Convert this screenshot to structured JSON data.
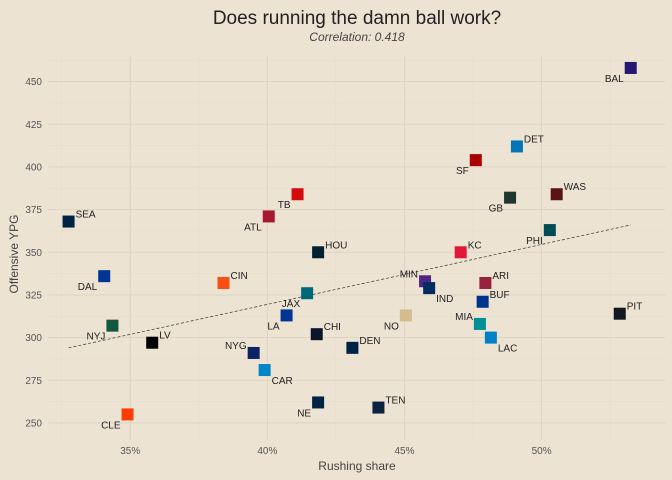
{
  "chart_data": {
    "type": "scatter",
    "title": "Does running the damn ball work?",
    "subtitle": "Correlation: 0.418",
    "xlabel": "Rushing share",
    "ylabel": "Offensive YPG",
    "xlim": [
      0.32,
      0.545
    ],
    "ylim": [
      240,
      465
    ],
    "x_ticks": [
      0.35,
      0.4,
      0.45,
      0.5
    ],
    "x_tick_labels": [
      "35%",
      "40%",
      "45%",
      "50%"
    ],
    "y_ticks": [
      250,
      275,
      300,
      325,
      350,
      375,
      400,
      425,
      450
    ],
    "y_tick_labels": [
      "250",
      "275",
      "300",
      "325",
      "350",
      "375",
      "400",
      "425",
      "450"
    ],
    "grid": true,
    "trendline": {
      "style": "dashed",
      "x": [
        0.3275,
        0.5325
      ],
      "y": [
        294,
        366
      ]
    },
    "points": [
      {
        "team": "BAL",
        "x": 0.5325,
        "y": 458,
        "color": "#241773",
        "label_pos": "bl"
      },
      {
        "team": "DET",
        "x": 0.491,
        "y": 412,
        "color": "#0076B6",
        "label_pos": "tr"
      },
      {
        "team": "SF",
        "x": 0.476,
        "y": 404,
        "color": "#AA0000",
        "label_pos": "bl"
      },
      {
        "team": "WAS",
        "x": 0.5055,
        "y": 384,
        "color": "#5A1414",
        "label_pos": "tr"
      },
      {
        "team": "GB",
        "x": 0.4885,
        "y": 382,
        "color": "#203731",
        "label_pos": "bl"
      },
      {
        "team": "TB",
        "x": 0.411,
        "y": 384,
        "color": "#D50A0A",
        "label_pos": "bl"
      },
      {
        "team": "ATL",
        "x": 0.4005,
        "y": 371,
        "color": "#A71930",
        "label_pos": "bl"
      },
      {
        "team": "SEA",
        "x": 0.3275,
        "y": 368,
        "color": "#002244",
        "label_pos": "tr"
      },
      {
        "team": "PHI",
        "x": 0.503,
        "y": 363,
        "color": "#004C54",
        "label_pos": "bl"
      },
      {
        "team": "HOU",
        "x": 0.4185,
        "y": 350,
        "color": "#03202F",
        "label_pos": "tr"
      },
      {
        "team": "KC",
        "x": 0.4705,
        "y": 350,
        "color": "#E31837",
        "label_pos": "tr"
      },
      {
        "team": "DAL",
        "x": 0.3405,
        "y": 336,
        "color": "#003594",
        "label_pos": "bl"
      },
      {
        "team": "CIN",
        "x": 0.384,
        "y": 332,
        "color": "#FB4F14",
        "label_pos": "tr"
      },
      {
        "team": "MIN",
        "x": 0.4575,
        "y": 333,
        "color": "#4F2683",
        "label_pos": "tl"
      },
      {
        "team": "ARI",
        "x": 0.4795,
        "y": 332,
        "color": "#97233F",
        "label_pos": "tr"
      },
      {
        "team": "IND",
        "x": 0.459,
        "y": 329,
        "color": "#002C5F",
        "label_pos": "br"
      },
      {
        "team": "JAX",
        "x": 0.4145,
        "y": 326,
        "color": "#006778",
        "label_pos": "bl"
      },
      {
        "team": "BUF",
        "x": 0.4785,
        "y": 321,
        "color": "#00338D",
        "label_pos": "tr"
      },
      {
        "team": "PIT",
        "x": 0.5285,
        "y": 314,
        "color": "#101820",
        "label_pos": "tr"
      },
      {
        "team": "LA",
        "x": 0.407,
        "y": 313,
        "color": "#003594",
        "label_pos": "bl"
      },
      {
        "team": "NO",
        "x": 0.4505,
        "y": 313,
        "color": "#D3BC8D",
        "label_pos": "bl"
      },
      {
        "team": "MIA",
        "x": 0.4775,
        "y": 308,
        "color": "#008E97",
        "label_pos": "tl"
      },
      {
        "team": "NYJ",
        "x": 0.3435,
        "y": 307,
        "color": "#125740",
        "label_pos": "bl"
      },
      {
        "team": "CHI",
        "x": 0.418,
        "y": 302,
        "color": "#0B162A",
        "label_pos": "tr"
      },
      {
        "team": "LAC",
        "x": 0.4815,
        "y": 300,
        "color": "#0080C6",
        "label_pos": "br"
      },
      {
        "team": "LV",
        "x": 0.358,
        "y": 297,
        "color": "#000000",
        "label_pos": "tr"
      },
      {
        "team": "DEN",
        "x": 0.431,
        "y": 294,
        "color": "#002244",
        "label_pos": "tr"
      },
      {
        "team": "NYG",
        "x": 0.395,
        "y": 291,
        "color": "#0B2265",
        "label_pos": "tl"
      },
      {
        "team": "CAR",
        "x": 0.399,
        "y": 281,
        "color": "#0085CA",
        "label_pos": "br"
      },
      {
        "team": "TEN",
        "x": 0.4405,
        "y": 259,
        "color": "#0C2340",
        "label_pos": "tr"
      },
      {
        "team": "NE",
        "x": 0.4185,
        "y": 262,
        "color": "#002244",
        "label_pos": "bl"
      },
      {
        "team": "CLE",
        "x": 0.349,
        "y": 255,
        "color": "#FF3C00",
        "label_pos": "bl"
      }
    ]
  }
}
